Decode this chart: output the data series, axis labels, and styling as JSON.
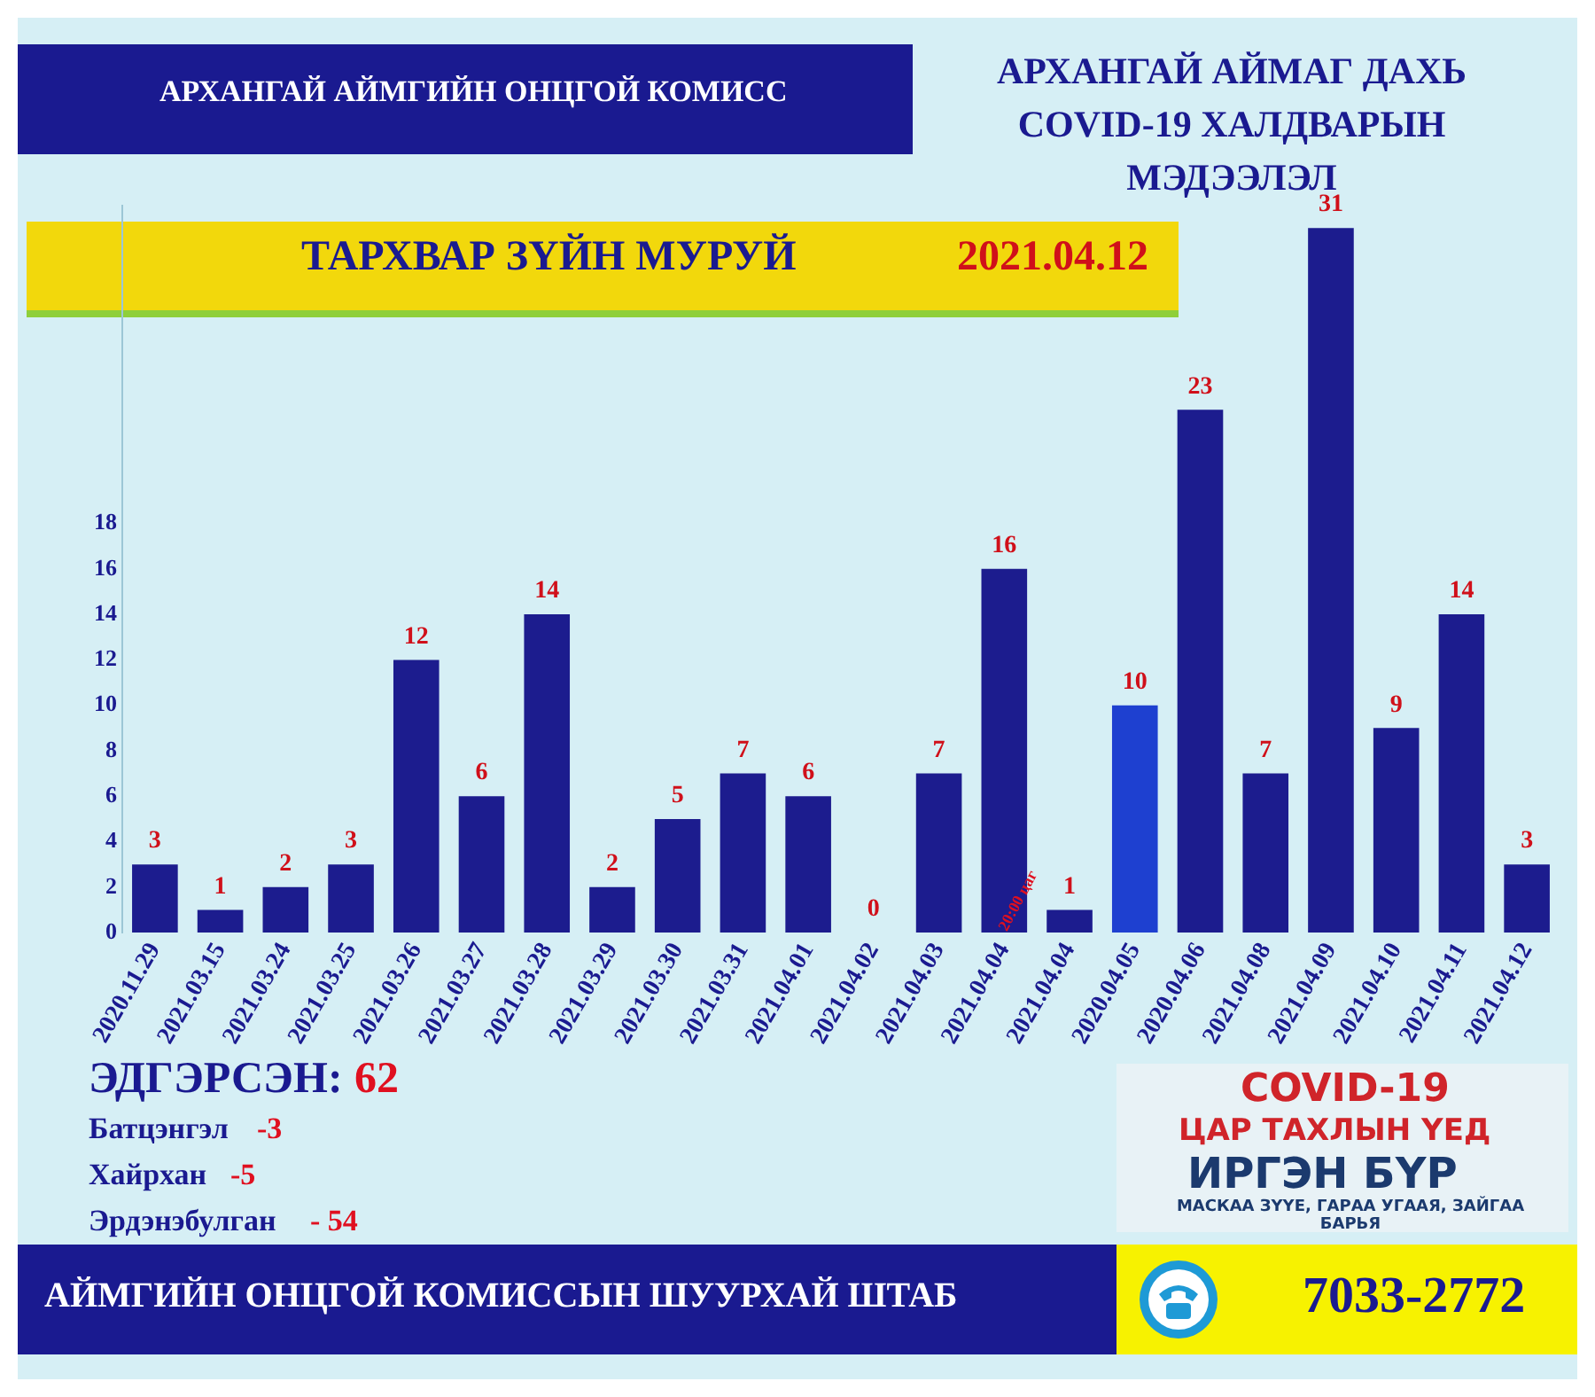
{
  "chart_data": {
    "type": "bar",
    "title": "АРХАНГАЙ АЙМАГ ДАХЬ COVID-19 ХАЛДВАРЫН МЭДЭЭЛЭЛ",
    "subtitle": "ТАРХВАР ЗҮЙН МУРУЙ",
    "categories": [
      "2020.11.29",
      "2021.03.15",
      "2021.03.24",
      "2021.03.25",
      "2021.03.26",
      "2021.03.27",
      "2021.03.28",
      "2021.03.29",
      "2021.03.30",
      "2021.03.31",
      "2021.04.01",
      "2021.04.02",
      "2021.04.03",
      "2021.04.04",
      "2021.04.04",
      "2020.04.05",
      "2020.04.06",
      "2021.04.08",
      "2021.04.09",
      "2021.04.10",
      "2021.04.11",
      "2021.04.12"
    ],
    "values": [
      3,
      1,
      2,
      3,
      12,
      6,
      14,
      2,
      5,
      7,
      6,
      0,
      7,
      16,
      1,
      10,
      23,
      7,
      31,
      9,
      14,
      3
    ],
    "colors": [
      "#1c1c8e",
      "#1c1c8e",
      "#1c1c8e",
      "#1c1c8e",
      "#1c1c8e",
      "#1c1c8e",
      "#1c1c8e",
      "#1c1c8e",
      "#1c1c8e",
      "#1c1c8e",
      "#1c1c8e",
      "#1c1c8e",
      "#1c1c8e",
      "#1c1c8e",
      "#1c1c8e",
      "#1e40d0",
      "#1c1c8e",
      "#1c1c8e",
      "#1c1c8e",
      "#1c1c8e",
      "#1c1c8e",
      "#1c1c8e"
    ],
    "ylim": [
      0,
      32
    ],
    "yticks": [
      0,
      2,
      4,
      6,
      8,
      10,
      12,
      14,
      16,
      18
    ],
    "grid": false,
    "legend": false,
    "data_labels": true,
    "annotations": [
      "АРХАНГАЙ АЙМГИЙН ОНЦГОЙ КОМИСС",
      "2021.04.12",
      "20:00 цаг",
      "ЭДГЭРСЭН:",
      "62",
      "Батцэнгэл",
      "-3",
      "Хайрхан",
      "-5",
      "Эрдэнэбулган",
      "- 54",
      "COVID-19",
      "ЦАР ТАХЛЫН ҮЕД",
      "ИРГЭН БҮР",
      "МАСКАА ЗҮҮЕ, ГАРАА УГААЯ, ЗАЙГАА БАРЬЯ",
      "АЙМГИЙН ОНЦГОЙ КОМИССЫН ШУУРХАЙ ШТАБ",
      "7033-2772"
    ]
  }
}
